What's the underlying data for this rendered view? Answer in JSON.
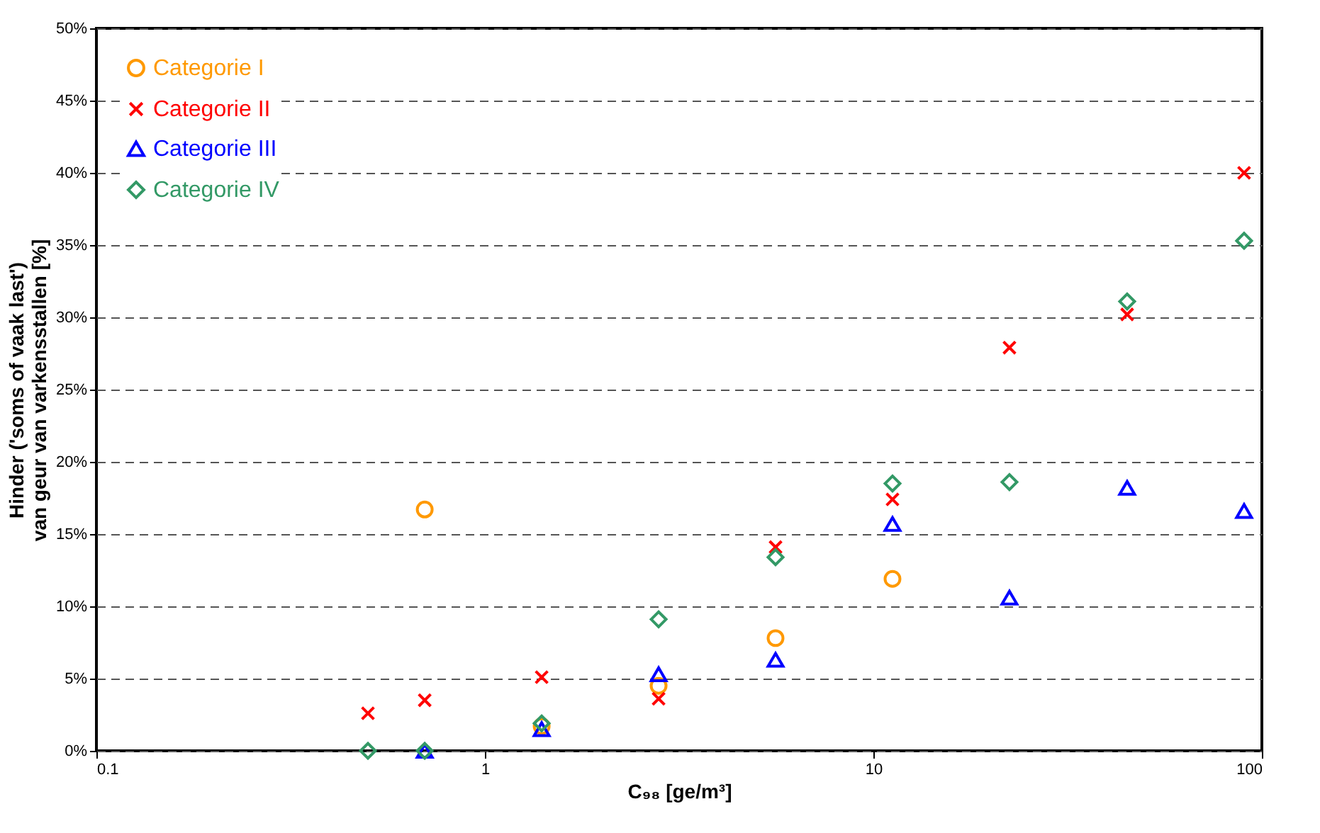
{
  "chart_data": {
    "type": "scatter",
    "xlabel": "C₉₈ [ge/m³]",
    "ylabel": "Hinder ('soms of vaak last') van geur van varkensstallen [%]",
    "x": [
      0.5,
      0.7,
      1.4,
      2.8,
      5.6,
      11.2,
      22.4,
      45,
      90
    ],
    "series": [
      {
        "name": "Categorie I",
        "color": "#ff9900",
        "marker": "circle",
        "values": [
          null,
          16.7,
          1.7,
          4.5,
          7.8,
          11.9,
          null,
          null,
          null
        ]
      },
      {
        "name": "Categorie II",
        "color": "#ff0000",
        "marker": "cross",
        "values": [
          2.6,
          3.5,
          5.1,
          3.6,
          14.1,
          17.4,
          27.9,
          30.2,
          40
        ]
      },
      {
        "name": "Categorie III",
        "color": "#0000ff",
        "marker": "triangle",
        "values": [
          null,
          0,
          1.5,
          5.3,
          6.3,
          15.7,
          10.6,
          18.2,
          16.6
        ]
      },
      {
        "name": "Categorie IV",
        "color": "#339966",
        "marker": "diamond",
        "values": [
          0,
          0,
          1.9,
          9.1,
          13.4,
          18.5,
          18.6,
          31.1,
          35.3
        ]
      }
    ],
    "log": "x",
    "xlim": [
      0.1,
      100
    ],
    "xticks": [
      0.1,
      1,
      10,
      100
    ],
    "ylim": [
      0,
      50
    ],
    "yticks": [
      {
        "value": 0,
        "label": "0%"
      },
      {
        "value": 5,
        "label": "5%"
      },
      {
        "value": 10,
        "label": "10%"
      },
      {
        "value": 15,
        "label": "15%"
      },
      {
        "value": 20,
        "label": "20%"
      },
      {
        "value": 25,
        "label": "25%"
      },
      {
        "value": 30,
        "label": "30%"
      },
      {
        "value": 35,
        "label": "35%"
      },
      {
        "value": 40,
        "label": "40%"
      },
      {
        "value": 45,
        "label": "45%"
      },
      {
        "value": 50,
        "label": "50%"
      }
    ],
    "grid": "y",
    "legend": "top left"
  }
}
